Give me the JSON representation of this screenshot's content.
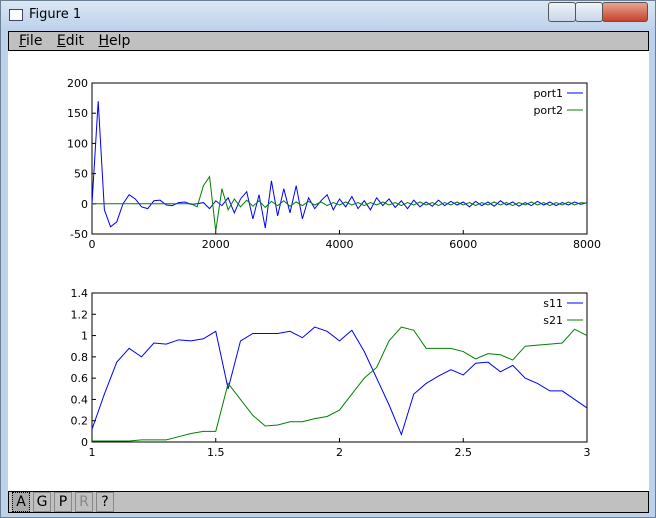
{
  "window": {
    "title": "Figure 1"
  },
  "menu": [
    "File",
    "Edit",
    "Help"
  ],
  "toolbar": [
    "A",
    "G",
    "P",
    "R",
    "?"
  ],
  "chart_data": [
    {
      "type": "line",
      "x": [
        0,
        100,
        200,
        300,
        400,
        500,
        600,
        700,
        800,
        900,
        1000,
        1100,
        1200,
        1300,
        1400,
        1500,
        1600,
        1700,
        1800,
        1900,
        2000,
        2100,
        2200,
        2300,
        2400,
        2500,
        2600,
        2700,
        2800,
        2900,
        3000,
        3100,
        3200,
        3300,
        3400,
        3500,
        3600,
        3700,
        3800,
        3900,
        4000,
        4100,
        4200,
        4300,
        4400,
        4500,
        4600,
        4700,
        4800,
        4900,
        5000,
        5100,
        5200,
        5300,
        5400,
        5500,
        5600,
        5700,
        5800,
        5900,
        6000,
        6100,
        6200,
        6300,
        6400,
        6500,
        6600,
        6700,
        6800,
        6900,
        7000,
        7100,
        7200,
        7300,
        7400,
        7500,
        7600,
        7700,
        7800,
        7900,
        8000
      ],
      "series": [
        {
          "name": "port1",
          "color": "#0000ff",
          "values": [
            0,
            170,
            -10,
            -38,
            -30,
            0,
            15,
            8,
            -5,
            -8,
            5,
            6,
            -2,
            -3,
            2,
            3,
            -1,
            0,
            2,
            -8,
            5,
            -3,
            10,
            -15,
            8,
            20,
            -25,
            15,
            -40,
            38,
            -20,
            25,
            -15,
            30,
            -25,
            10,
            -8,
            5,
            15,
            -10,
            8,
            -5,
            12,
            -8,
            5,
            -10,
            10,
            -3,
            8,
            -6,
            5,
            -8,
            6,
            -5,
            3,
            -4,
            6,
            -3,
            4,
            -2,
            3,
            -5,
            4,
            -3,
            3,
            -4,
            5,
            -2,
            3,
            -4,
            2,
            -3,
            4,
            -2,
            3,
            -3,
            2,
            -2,
            3,
            -1,
            2
          ]
        },
        {
          "name": "port2",
          "color": "#008000",
          "values": [
            0,
            0,
            0,
            0,
            0,
            0,
            0,
            0,
            0,
            0,
            0,
            0,
            0,
            0,
            0,
            0,
            0,
            -5,
            30,
            45,
            -45,
            25,
            -10,
            8,
            -5,
            6,
            -4,
            5,
            -6,
            4,
            -3,
            5,
            -4,
            3,
            -3,
            4,
            -2,
            3,
            -3,
            2,
            -2,
            3,
            -2,
            2,
            -3,
            2,
            -2,
            3,
            -2,
            2,
            -3,
            2,
            -2,
            3,
            -2,
            2,
            -3,
            2,
            -2,
            3,
            -2,
            2,
            -3,
            2,
            -2,
            3,
            -2,
            2,
            -3,
            2,
            -2,
            3,
            -2,
            2,
            -3,
            2,
            -2,
            3,
            -2,
            2,
            1
          ]
        }
      ],
      "xlim": [
        0,
        8000
      ],
      "xticks": [
        0,
        2000,
        4000,
        6000,
        8000
      ],
      "ylim": [
        -50,
        200
      ],
      "yticks": [
        -50,
        0,
        50,
        100,
        150,
        200
      ],
      "legend": "upper-right"
    },
    {
      "type": "line",
      "x": [
        1,
        1.05,
        1.1,
        1.15,
        1.2,
        1.25,
        1.3,
        1.35,
        1.4,
        1.45,
        1.5,
        1.55,
        1.6,
        1.65,
        1.7,
        1.75,
        1.8,
        1.85,
        1.9,
        1.95,
        2,
        2.05,
        2.1,
        2.15,
        2.2,
        2.25,
        2.3,
        2.35,
        2.4,
        2.45,
        2.5,
        2.55,
        2.6,
        2.65,
        2.7,
        2.75,
        2.8,
        2.85,
        2.9,
        2.95,
        3
      ],
      "series": [
        {
          "name": "s11",
          "color": "#0000ff",
          "values": [
            0.12,
            0.45,
            0.75,
            0.88,
            0.8,
            0.93,
            0.92,
            0.96,
            0.95,
            0.97,
            1.04,
            0.5,
            0.95,
            1.02,
            1.02,
            1.02,
            1.04,
            0.98,
            1.08,
            1.04,
            0.95,
            1.05,
            0.85,
            0.6,
            0.35,
            0.07,
            0.45,
            0.55,
            0.62,
            0.68,
            0.63,
            0.74,
            0.75,
            0.66,
            0.72,
            0.6,
            0.55,
            0.48,
            0.48,
            0.4,
            0.32
          ]
        },
        {
          "name": "s21",
          "color": "#008000",
          "values": [
            0.01,
            0.01,
            0.01,
            0.01,
            0.02,
            0.02,
            0.02,
            0.05,
            0.08,
            0.1,
            0.1,
            0.55,
            0.4,
            0.25,
            0.15,
            0.16,
            0.19,
            0.19,
            0.22,
            0.24,
            0.3,
            0.45,
            0.6,
            0.7,
            0.95,
            1.08,
            1.05,
            0.88,
            0.88,
            0.88,
            0.85,
            0.78,
            0.83,
            0.82,
            0.77,
            0.9,
            0.91,
            0.92,
            0.93,
            1.06,
            1
          ]
        }
      ],
      "xlim": [
        1,
        3
      ],
      "xticks": [
        1,
        1.5,
        2,
        2.5,
        3
      ],
      "ylim": [
        0,
        1.4
      ],
      "yticks": [
        0,
        0.2,
        0.4,
        0.6,
        0.8,
        1,
        1.2,
        1.4
      ],
      "legend": "upper-right"
    }
  ]
}
